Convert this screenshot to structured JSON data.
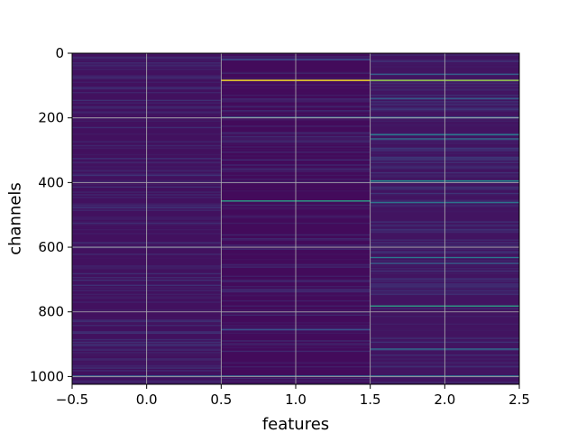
{
  "chart_data": {
    "type": "heatmap",
    "title": "",
    "xlabel": "features",
    "ylabel": "channels",
    "xlim": [
      -0.5,
      2.5
    ],
    "ylim": [
      1024,
      0
    ],
    "y_inverted": true,
    "grid": true,
    "colormap": "viridis",
    "x_ticks": [
      {
        "value": -0.5,
        "label": "−0.5"
      },
      {
        "value": 0.0,
        "label": "0.0"
      },
      {
        "value": 0.5,
        "label": "0.5"
      },
      {
        "value": 1.0,
        "label": "1.0"
      },
      {
        "value": 1.5,
        "label": "1.5"
      },
      {
        "value": 2.0,
        "label": "2.0"
      },
      {
        "value": 2.5,
        "label": "2.5"
      }
    ],
    "y_ticks": [
      {
        "value": 0,
        "label": "0"
      },
      {
        "value": 200,
        "label": "200"
      },
      {
        "value": 400,
        "label": "400"
      },
      {
        "value": 600,
        "label": "600"
      },
      {
        "value": 800,
        "label": "800"
      },
      {
        "value": 1000,
        "label": "1000"
      }
    ],
    "columns": [
      {
        "feature": 0,
        "base_intensity": 0.05
      },
      {
        "feature": 1,
        "base_intensity": 0.03
      },
      {
        "feature": 2,
        "base_intensity": 0.06
      }
    ],
    "highlighted_rows": [
      {
        "feature": 1,
        "channel": 84,
        "intensity": 1.0
      },
      {
        "feature": 2,
        "channel": 84,
        "intensity": 0.85
      },
      {
        "feature": 1,
        "channel": 198,
        "intensity": 0.3
      },
      {
        "feature": 1,
        "channel": 457,
        "intensity": 0.55
      },
      {
        "feature": 1,
        "channel": 20,
        "intensity": 0.25
      },
      {
        "feature": 2,
        "channel": 65,
        "intensity": 0.3
      },
      {
        "feature": 2,
        "channel": 140,
        "intensity": 0.3
      },
      {
        "feature": 2,
        "channel": 198,
        "intensity": 0.28
      },
      {
        "feature": 2,
        "channel": 252,
        "intensity": 0.4
      },
      {
        "feature": 2,
        "channel": 265,
        "intensity": 0.35
      },
      {
        "feature": 2,
        "channel": 395,
        "intensity": 0.5
      },
      {
        "feature": 2,
        "channel": 462,
        "intensity": 0.38
      },
      {
        "feature": 2,
        "channel": 632,
        "intensity": 0.4
      },
      {
        "feature": 2,
        "channel": 650,
        "intensity": 0.3
      },
      {
        "feature": 2,
        "channel": 782,
        "intensity": 0.55
      },
      {
        "feature": 2,
        "channel": 915,
        "intensity": 0.35
      },
      {
        "feature": 1,
        "channel": 998,
        "intensity": 0.3
      },
      {
        "feature": 2,
        "channel": 998,
        "intensity": 0.35
      },
      {
        "feature": 0,
        "channel": 998,
        "intensity": 0.28
      },
      {
        "feature": 1,
        "channel": 855,
        "intensity": 0.25
      }
    ]
  }
}
